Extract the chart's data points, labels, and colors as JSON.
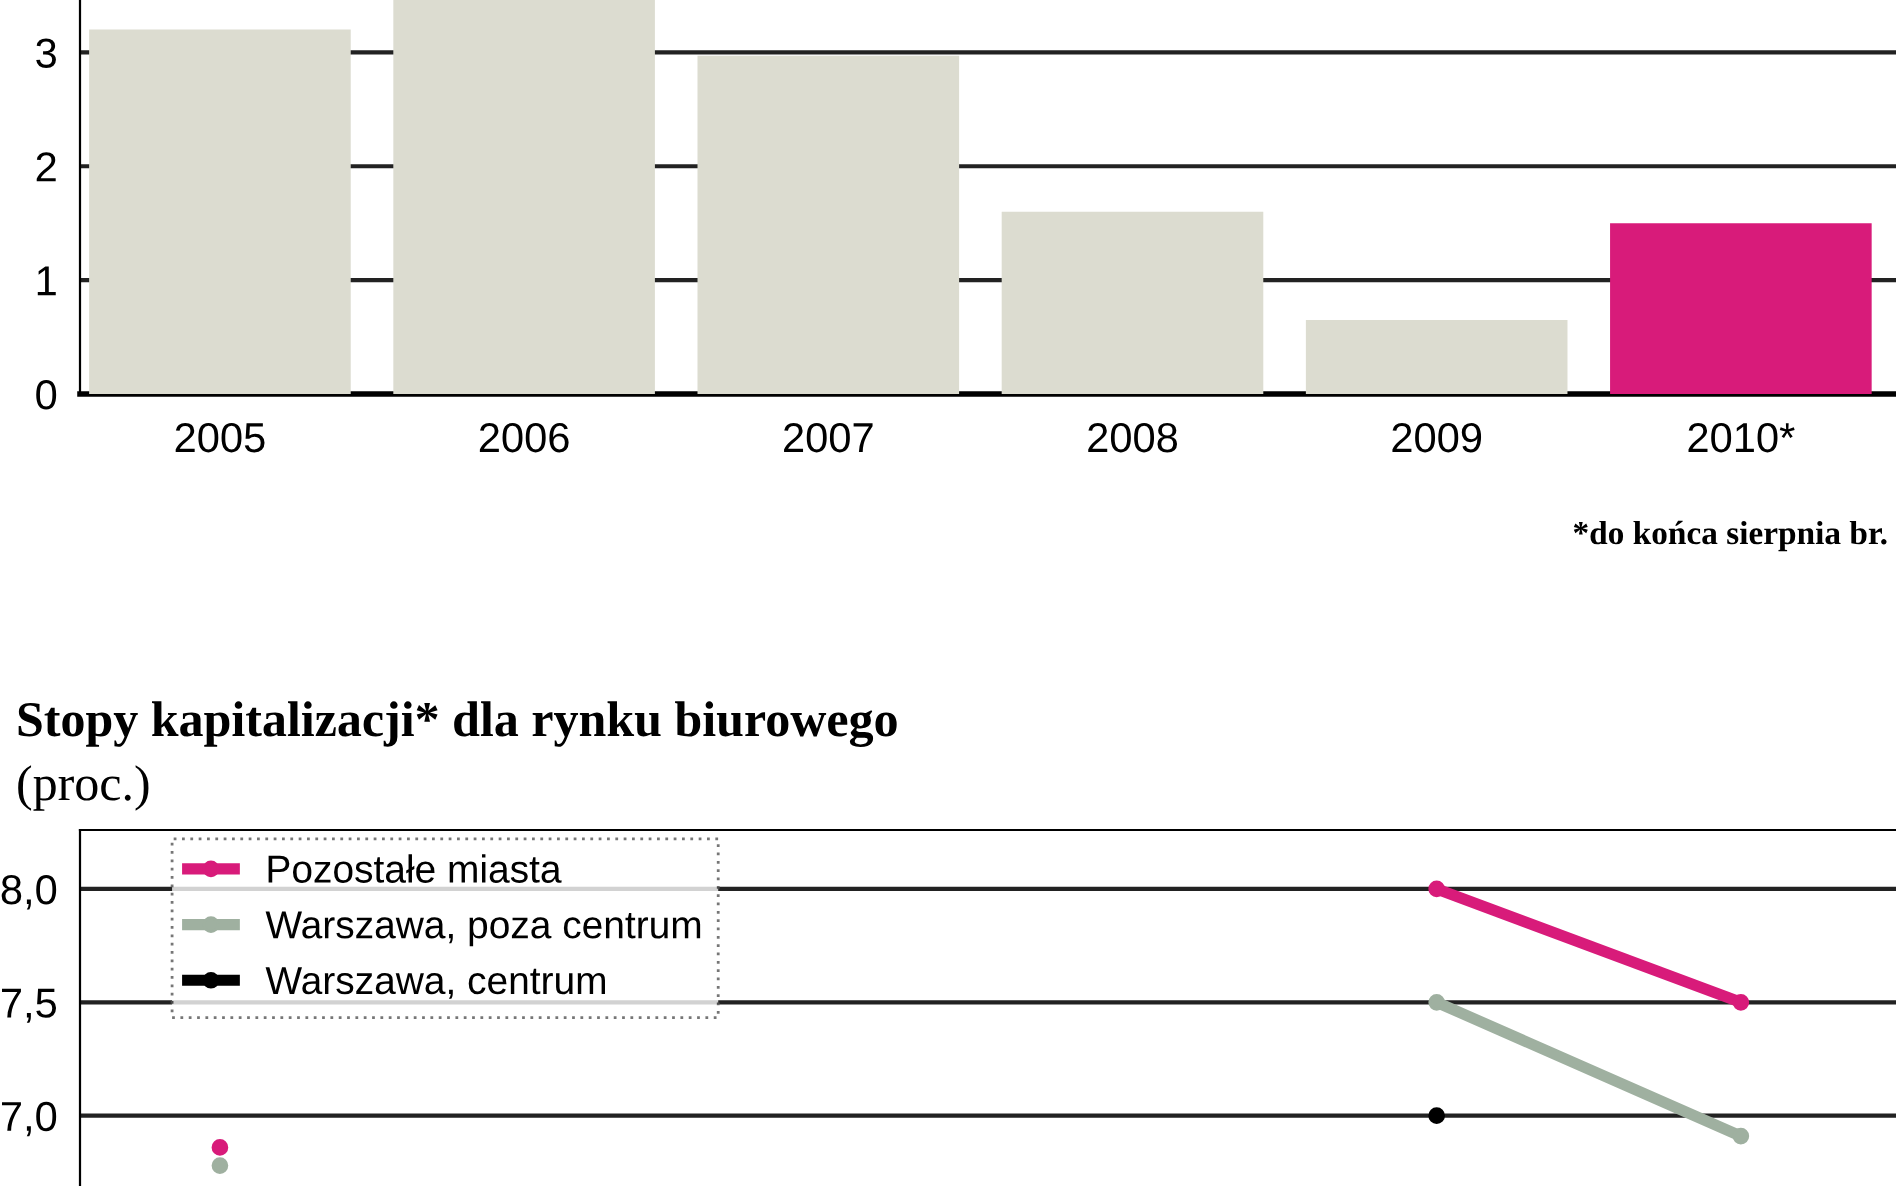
{
  "chart_data": [
    {
      "type": "bar",
      "categories": [
        "2005",
        "2006",
        "2007",
        "2008",
        "2009",
        "2010*"
      ],
      "values": [
        3.2,
        3.46,
        2.97,
        1.6,
        0.65,
        1.5
      ],
      "colors": [
        "#dcdcd0",
        "#dcdcd0",
        "#dcdcd0",
        "#dcdcd0",
        "#dcdcd0",
        "#d81b7a"
      ],
      "ylim": [
        0,
        3.46
      ],
      "yticks": [
        0,
        1,
        2,
        3
      ],
      "grid": "y",
      "annotations": [
        "*do końca sierpnia br."
      ]
    },
    {
      "type": "line",
      "title": "Stopy kapitalizacji* dla rynku biurowego",
      "subtitle": "(proc.)",
      "categories": [
        null,
        null,
        null,
        null,
        null,
        null
      ],
      "series": [
        {
          "name": "Pozostałe miasta",
          "color": "#d81b7a",
          "values": [
            6.86,
            null,
            null,
            null,
            8.0,
            7.5
          ]
        },
        {
          "name": "Warszawa, poza centrum",
          "color": "#9fb0a0",
          "values": [
            6.78,
            null,
            null,
            null,
            7.5,
            6.91
          ]
        },
        {
          "name": "Warszawa, centrum",
          "color": "#000000",
          "values": [
            null,
            null,
            null,
            null,
            7.0,
            null
          ]
        }
      ],
      "ylim": [
        6.69,
        8.26
      ],
      "yticks": [
        {
          "value": 7.0,
          "label": "7,0"
        },
        {
          "value": 7.5,
          "label": "7,5"
        },
        {
          "value": 8.0,
          "label": "8,0"
        }
      ],
      "grid": "y",
      "legend": "top left",
      "marker": "circle"
    }
  ]
}
